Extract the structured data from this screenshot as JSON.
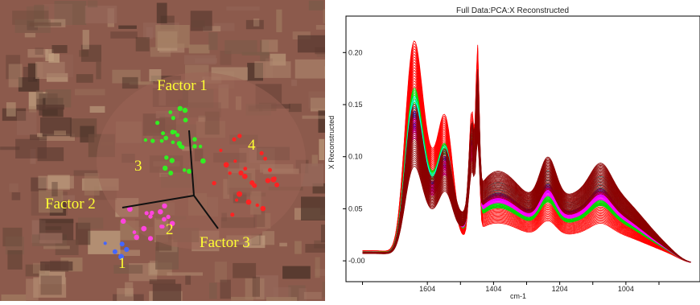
{
  "left_image": {
    "factors": [
      {
        "label": "Factor 1"
      },
      {
        "label": "Factor 2"
      },
      {
        "label": "Factor 3"
      }
    ],
    "clusters": [
      {
        "label": "1",
        "color": "#4466ff"
      },
      {
        "label": "2",
        "color": "#ff44dd"
      },
      {
        "label": "3",
        "color": "#33ee22"
      },
      {
        "label": "4",
        "color": "#ff2222"
      }
    ],
    "label_color": "#ffff33"
  },
  "chart_data": {
    "type": "line",
    "title": "Full Data:PCA:X Reconstructed",
    "xlabel": "cm-1",
    "ylabel": "X Reconstructed",
    "x_reversed": true,
    "xlim": [
      1850,
      780
    ],
    "ylim": [
      -0.02,
      0.235
    ],
    "x_ticks": [
      1604,
      1404,
      1204,
      1004
    ],
    "y_ticks": [
      -0.0,
      0.05,
      0.1,
      0.15,
      0.2
    ],
    "y_tick_labels": [
      "-0.00",
      "0.05",
      "0.10",
      "0.15",
      "0.20"
    ],
    "x_tick_labels": [
      "1604",
      "1404",
      "1204",
      "1004"
    ],
    "series_colors": [
      "#8b0000",
      "#ff0000",
      "#00dd00",
      "#0000ff",
      "#ff00ff",
      "#00ffff"
    ],
    "grid": false
  }
}
